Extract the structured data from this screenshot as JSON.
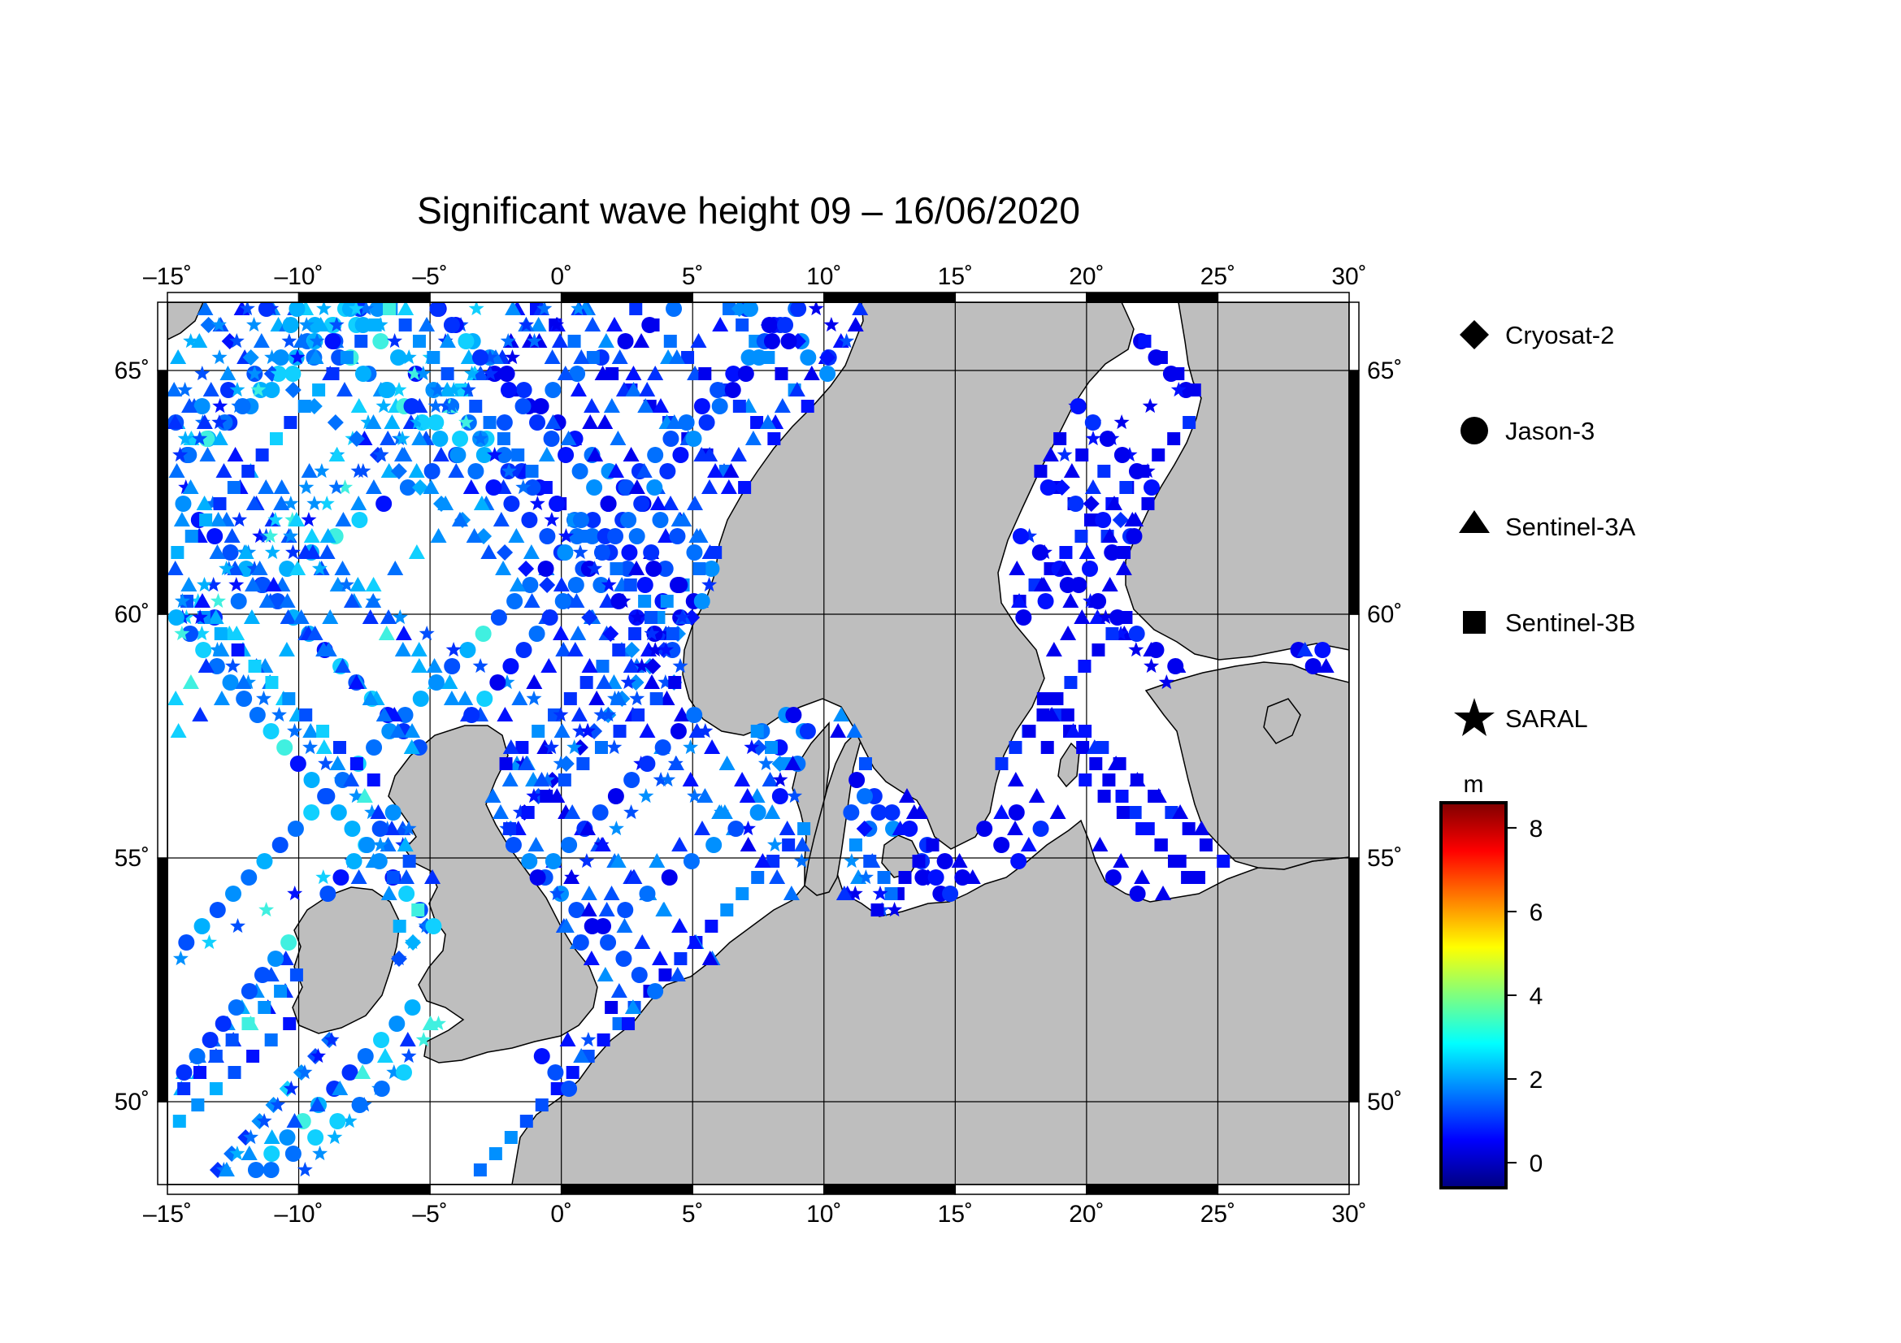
{
  "title": "Significant wave height 09 – 16/06/2020",
  "map": {
    "lon_range": [
      -15,
      30
    ],
    "lat_range": [
      48.3,
      66.4
    ],
    "lon_ticks": [
      {
        "value": -15,
        "label": "–15˚"
      },
      {
        "value": -10,
        "label": "–10˚"
      },
      {
        "value": -5,
        "label": "–5˚"
      },
      {
        "value": 0,
        "label": "0˚"
      },
      {
        "value": 5,
        "label": "5˚"
      },
      {
        "value": 10,
        "label": "10˚"
      },
      {
        "value": 15,
        "label": "15˚"
      },
      {
        "value": 20,
        "label": "20˚"
      },
      {
        "value": 25,
        "label": "25˚"
      },
      {
        "value": 30,
        "label": "30˚"
      }
    ],
    "lat_ticks": [
      {
        "value": 50,
        "label": "50˚"
      },
      {
        "value": 55,
        "label": "55˚"
      },
      {
        "value": 60,
        "label": "60˚"
      },
      {
        "value": 65,
        "label": "65˚"
      }
    ],
    "grid": true,
    "land_color": "#bebebe",
    "sea_color": "#ffffff"
  },
  "legend": {
    "items": [
      {
        "symbol": "diamond",
        "label": "Cryosat-2"
      },
      {
        "symbol": "circle",
        "label": "Jason-3"
      },
      {
        "symbol": "triangle",
        "label": "Sentinel-3A"
      },
      {
        "symbol": "square",
        "label": "Sentinel-3B"
      },
      {
        "symbol": "star",
        "label": "SARAL"
      }
    ]
  },
  "colorbar": {
    "unit": "m",
    "range": [
      -0.6,
      8.6
    ],
    "ticks": [
      {
        "value": 0,
        "label": "0"
      },
      {
        "value": 2,
        "label": "2"
      },
      {
        "value": 4,
        "label": "4"
      },
      {
        "value": 6,
        "label": "6"
      },
      {
        "value": 8,
        "label": "8"
      }
    ],
    "colors": [
      "#00007f",
      "#0000ff",
      "#007fff",
      "#00ffff",
      "#7fff7f",
      "#ffff00",
      "#ff7f00",
      "#ff0000",
      "#7f0000"
    ]
  }
}
